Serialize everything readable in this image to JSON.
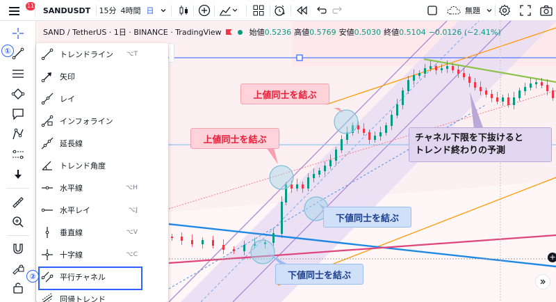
{
  "topbar": {
    "badge": "11",
    "symbol": "SANDUSDT",
    "interval_1": "15分",
    "interval_2": "4時間",
    "interval_3": "日",
    "layout_name": "無題",
    "icons": [
      "menu-icon",
      "add-icon",
      "indicators-icon",
      "layouts-icon",
      "alert-icon",
      "replay-icon",
      "undo-icon",
      "redo-icon",
      "fullscreen-icon",
      "cloud-icon",
      "settings-icon",
      "camera-icon"
    ]
  },
  "legend": {
    "title": "SAND / TetherUS · 1日 · BINANCE · TradingView",
    "open_label": "始値",
    "open": "0.5236",
    "high_label": "高値",
    "high": "0.5769",
    "low_label": "安値",
    "low": "0.5030",
    "close_label": "終値",
    "close": "0.5104",
    "change": "−0.0126 (−2.41%)"
  },
  "annotations": {
    "step1": "①",
    "step2": "②",
    "pink_top": "上値同士を結ぶ",
    "pink_mid": "上値同士を結ぶ",
    "blue_mid": "下値同士を結ぶ",
    "blue_bottom": "下値同士を結ぶ",
    "purple_line1": "チャネル下限を下抜けると",
    "purple_line2": "トレンド終わりの予測"
  },
  "drawing_tools": {
    "items": [
      {
        "label": "トレンドライン",
        "shortcut": "⌥T",
        "icon": "trendline-icon"
      },
      {
        "label": "矢印",
        "shortcut": "",
        "icon": "arrow-icon"
      },
      {
        "label": "レイ",
        "shortcut": "",
        "icon": "ray-icon"
      },
      {
        "label": "インフォライン",
        "shortcut": "",
        "icon": "info-line-icon"
      },
      {
        "label": "延長線",
        "shortcut": "",
        "icon": "extended-line-icon"
      },
      {
        "label": "トレンド角度",
        "shortcut": "",
        "icon": "trend-angle-icon"
      },
      {
        "label": "水平線",
        "shortcut": "⌥H",
        "icon": "horizontal-line-icon"
      },
      {
        "label": "水平レイ",
        "shortcut": "⌥J",
        "icon": "horizontal-ray-icon"
      },
      {
        "label": "垂直線",
        "shortcut": "⌥V",
        "icon": "vertical-line-icon"
      },
      {
        "label": "十字線",
        "shortcut": "⌥C",
        "icon": "cross-line-icon"
      },
      {
        "label": "平行チャネル",
        "shortcut": "",
        "icon": "parallel-channel-icon"
      },
      {
        "label": "回帰トレンド",
        "shortcut": "",
        "icon": "regression-trend-icon"
      }
    ],
    "selected": "平行チャネル"
  },
  "left_toolbar": {
    "icons": [
      "crosshair-icon",
      "trendline-tool-icon",
      "fib-icon",
      "pattern-icon",
      "comment-icon",
      "prediction-icon",
      "measure-icon",
      "down-arrow-icon",
      "ruler-icon",
      "zoom-in-icon",
      "magnet-icon",
      "lock-drawing-icon",
      "lock-icon"
    ]
  },
  "colors": {
    "up": "#089981",
    "down": "#f23645",
    "accent": "#2962ff",
    "channel_fill": "#e9ddf3",
    "orange_line": "#ff9800",
    "green_line": "#8bc34a",
    "pink_line": "#e91e63"
  }
}
